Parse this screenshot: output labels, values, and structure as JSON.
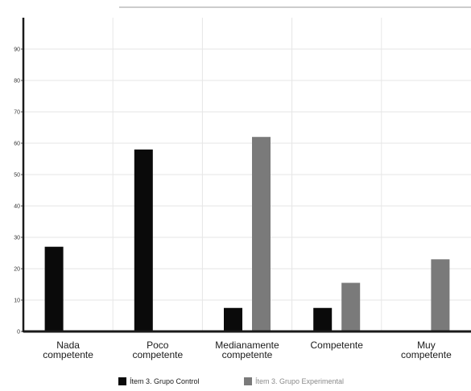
{
  "chart_data": {
    "type": "bar",
    "title": "",
    "xlabel": "",
    "ylabel": "",
    "categories": [
      [
        "Nada",
        "competente"
      ],
      [
        "Poco",
        "competente"
      ],
      [
        "Medianamente",
        "competente"
      ],
      [
        "Competente"
      ],
      [
        "Muy",
        "competente"
      ]
    ],
    "series": [
      {
        "name": "Ítem 3. Grupo Control",
        "color": "#0a0a0a",
        "values": [
          27,
          58,
          7.5,
          7.5,
          0
        ]
      },
      {
        "name": "Ítem 3. Grupo Experimental",
        "color": "#7a7a7a",
        "values": [
          0,
          0,
          62,
          15.5,
          23
        ]
      }
    ],
    "ylim": [
      0,
      100
    ],
    "yticks": [
      0,
      10,
      20,
      30,
      40,
      50,
      60,
      70,
      80,
      90
    ],
    "ytick_labels": [
      "0",
      "10",
      "20",
      "30",
      "40",
      "50",
      "60",
      "70",
      "80",
      "90"
    ],
    "grid": true,
    "legend_position": "bottom"
  }
}
